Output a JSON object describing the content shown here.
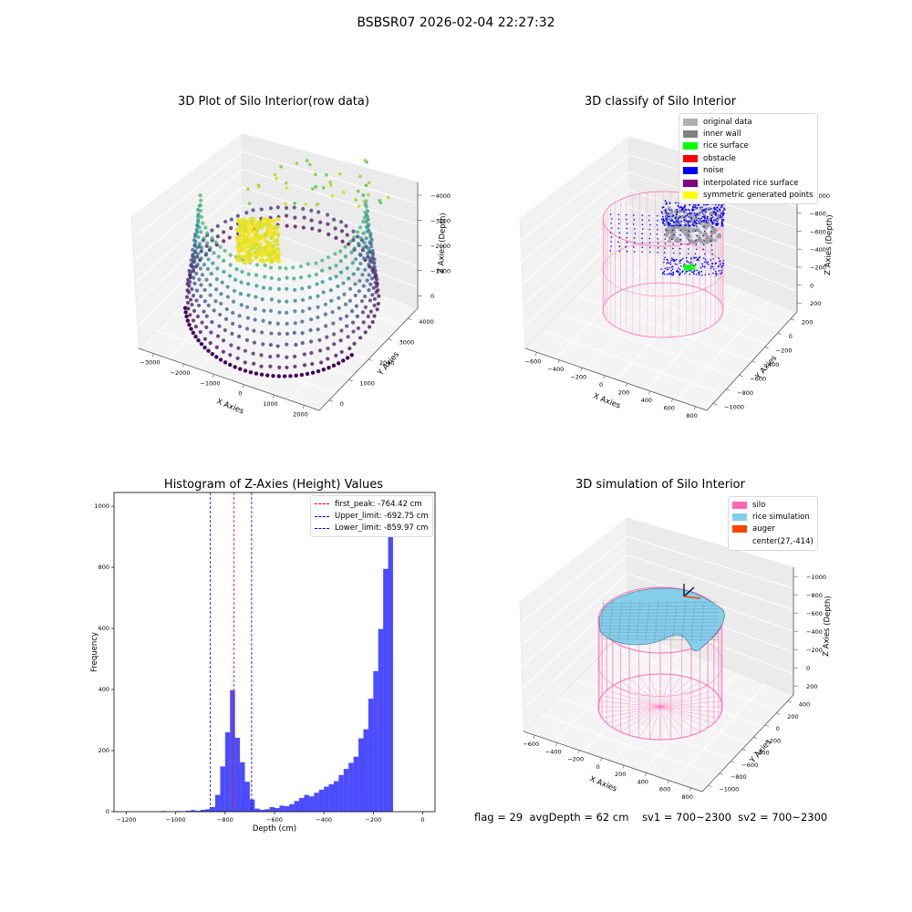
{
  "figure": {
    "suptitle": "BSBSR07 2026-02-04 22:27:32"
  },
  "footer": {
    "flag": "flag = 29",
    "avgdepth": "avgDepth = 62 cm",
    "sv1": "sv1 = 700~2300",
    "sv2": "sv2 = 700~2300"
  },
  "colors": {
    "silo": "#ff69b4",
    "rice": "#87ceeb",
    "auger": "#ff4500",
    "hist": "#0000ff",
    "peak": "#ff0000",
    "limit": "#0000ff",
    "original": "#b0b0b0",
    "inner_wall": "#808080",
    "surface": "#00ff00",
    "obstacle": "#ff0000",
    "noise": "#0000ff",
    "interp": "#800080",
    "sym": "#ffff00"
  },
  "chart_data": [
    {
      "type": "scatter",
      "title": "3D Plot of Silo Interior(row data)",
      "xlabel": "X Axies",
      "ylabel": "Y Axies",
      "zlabel": "Z Axies (Depth)",
      "x_ticks": [
        "−3000",
        "−2000",
        "−1000",
        "0",
        "1000",
        "2000"
      ],
      "y_ticks": [
        "0",
        "1000",
        "2000",
        "3000",
        "4000"
      ],
      "z_ticks": [
        "0",
        "−1000",
        "−2000",
        "−3000",
        "−4000"
      ],
      "colormap": "viridis"
    },
    {
      "type": "scatter",
      "title": "3D classify of Silo Interior",
      "xlabel": "X Axies",
      "ylabel": "Y Axies",
      "zlabel": "Z Axies (Depth)",
      "x_ticks": [
        "−600",
        "−400",
        "−200",
        "0",
        "200",
        "400",
        "600",
        "800"
      ],
      "y_ticks": [
        "−1000",
        "−800",
        "−600",
        "−400",
        "−200",
        "0",
        "200"
      ],
      "z_ticks": [
        "200",
        "0",
        "−200",
        "−400",
        "−600",
        "−800",
        "−1000"
      ],
      "legend": [
        "original data",
        "inner wall",
        "rice surface",
        "obstacle",
        "noise",
        "interpolated rice surface",
        "symmetric generated points"
      ],
      "legend_placement": "top-right"
    },
    {
      "type": "bar",
      "title": "Histogram of Z-Axies (Height) Values",
      "xlabel": "Depth (cm)",
      "ylabel": "Frequency",
      "xlim": [
        -1250,
        50
      ],
      "ylim": [
        0,
        1045
      ],
      "x_ticks": [
        -1200,
        -1000,
        -800,
        -600,
        -400,
        -200,
        0
      ],
      "x_tick_labels": [
        "−1200",
        "−1000",
        "−800",
        "−600",
        "−400",
        "−200",
        "0"
      ],
      "y_ticks": [
        0,
        200,
        400,
        600,
        800,
        1000
      ],
      "bin_width": 20,
      "bin_left_edges": [
        -1060,
        -1040,
        -1020,
        -1000,
        -980,
        -960,
        -940,
        -920,
        -900,
        -880,
        -860,
        -840,
        -820,
        -800,
        -780,
        -760,
        -740,
        -720,
        -700,
        -680,
        -660,
        -640,
        -620,
        -600,
        -580,
        -560,
        -540,
        -520,
        -500,
        -480,
        -460,
        -440,
        -420,
        -400,
        -380,
        -360,
        -340,
        -320,
        -300,
        -280,
        -260,
        -240,
        -220,
        -200,
        -180,
        -160,
        -140,
        -120,
        -100,
        -80,
        -60,
        -40,
        -20
      ],
      "values": [
        2,
        0,
        0,
        2,
        1,
        3,
        5,
        3,
        6,
        8,
        15,
        55,
        148,
        260,
        398,
        242,
        162,
        98,
        40,
        10,
        6,
        8,
        15,
        12,
        20,
        18,
        25,
        35,
        45,
        55,
        50,
        62,
        72,
        82,
        90,
        100,
        120,
        140,
        160,
        180,
        240,
        270,
        370,
        460,
        598,
        795,
        1000,
        0,
        0,
        0,
        0,
        0,
        0
      ],
      "vlines": [
        {
          "name": "first_peak: -764.42 cm",
          "x": -764.42,
          "color": "#ff0000"
        },
        {
          "name": "Upper_limit: -692.75 cm",
          "x": -692.75,
          "color": "#0000ff"
        },
        {
          "name": "Lower_limit: -859.97 cm",
          "x": -859.97,
          "color": "#0000ff"
        }
      ],
      "legend_placement": "top-right"
    },
    {
      "type": "area",
      "title": "3D simulation of Silo Interior",
      "xlabel": "X Axies",
      "ylabel": "Y Axies",
      "zlabel": "Z Axies (Depth)",
      "x_ticks": [
        "−600",
        "−400",
        "−200",
        "0",
        "200",
        "400",
        "600",
        "800"
      ],
      "y_ticks": [
        "−1000",
        "−800",
        "−600",
        "−400",
        "−200",
        "0",
        "200",
        "400"
      ],
      "z_ticks": [
        "200",
        "0",
        "−200",
        "−400",
        "−600",
        "−800",
        "−1000"
      ],
      "legend": [
        "silo",
        "rice simulation",
        "auger",
        "center(27,-414)"
      ],
      "legend_placement": "top-right"
    }
  ]
}
